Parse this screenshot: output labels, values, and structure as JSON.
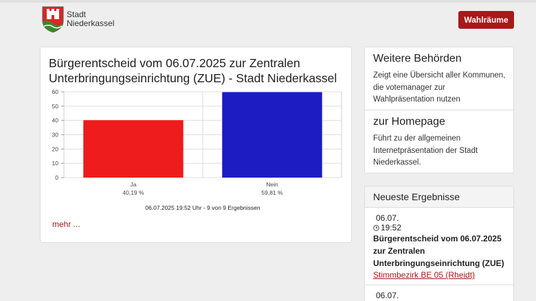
{
  "header": {
    "logo_line1": "Stadt",
    "logo_line2": "Niederkassel",
    "button_label": "Wahlräume"
  },
  "main": {
    "title": "Bürgerentscheid vom 06.07.2025 zur Zentralen Unterbringungseinrichtung (ZUE) - Stadt Niederkassel",
    "footer_note": "06.07.2025 19:52 Uhr - 9 von 9 Ergebnissen",
    "more_link": "mehr ..."
  },
  "chart_data": {
    "type": "bar",
    "categories": [
      "Ja",
      "Nein"
    ],
    "percent_labels": [
      "40,19 %",
      "59,81 %"
    ],
    "values": [
      40.19,
      59.81
    ],
    "colors": [
      "#ee1c1c",
      "#1c1cc2"
    ],
    "ylim": [
      0,
      60
    ],
    "yticks": [
      0,
      10,
      20,
      30,
      40,
      50,
      60
    ],
    "grid": true
  },
  "sidebar": {
    "behoerden_title": "Weitere Behörden",
    "behoerden_text": "Zeigt eine Übersicht aller Kommunen, die votemanager zur Wahlpräsentation nutzen",
    "homepage_title": "zur Homepage",
    "homepage_text": "Führt zu der allgemeinen Internetpräsentation der Stadt Niederkassel.",
    "neueste_title": "Neueste Ergebnisse",
    "results": [
      {
        "date": "06.07.",
        "time": "19:52",
        "title": "Bürgerentscheid vom 06.07.2025 zur Zentralen Unterbringungseinrichtung (ZUE)",
        "link": "Stimmbezirk BE 05 (Rheidt)"
      },
      {
        "date": "06.07."
      }
    ]
  }
}
